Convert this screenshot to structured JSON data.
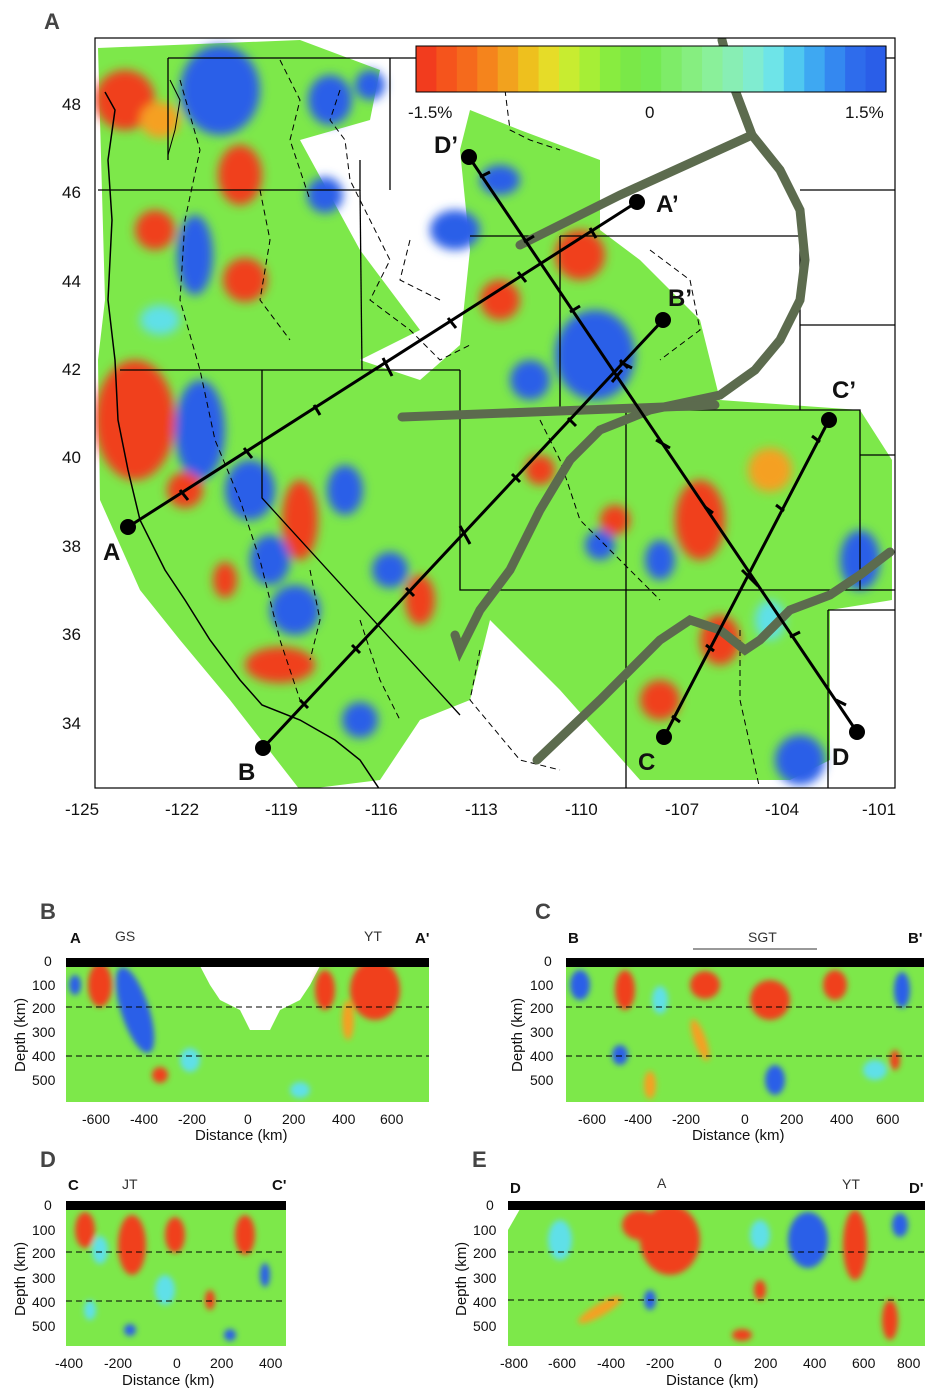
{
  "panels": {
    "A": "A",
    "B": "B",
    "C": "C",
    "D": "D",
    "E": "E"
  },
  "map": {
    "colorbar": {
      "min_label": "-1.5%",
      "mid_label": "0",
      "max_label": "1.5%"
    },
    "lon_ticks": [
      "-125",
      "-122",
      "-119",
      "-116",
      "-113",
      "-110",
      "-107",
      "-104",
      "-101"
    ],
    "lat_ticks": [
      "48",
      "46",
      "44",
      "42",
      "40",
      "38",
      "36",
      "34"
    ],
    "profile_labels": {
      "A": "A",
      "A_end": "A’",
      "B": "B",
      "B_end": "B’",
      "C": "C",
      "C_end": "C’",
      "D": "D",
      "D_end": "D’"
    }
  },
  "sections": {
    "B": {
      "left": "A",
      "right": "A'",
      "annot1": "GS",
      "annot2": "YT",
      "xticks": [
        "-600",
        "-400",
        "-200",
        "0",
        "200",
        "400",
        "600"
      ]
    },
    "C": {
      "left": "B",
      "right": "B'",
      "annot1": "SGT",
      "xticks": [
        "-600",
        "-400",
        "-200",
        "0",
        "200",
        "400",
        "600"
      ]
    },
    "D": {
      "left": "C",
      "right": "C'",
      "annot1": "JT",
      "xticks": [
        "-400",
        "-200",
        "0",
        "200",
        "400"
      ]
    },
    "E": {
      "left": "D",
      "right": "D'",
      "annot1": "A",
      "annot2": "YT",
      "xticks": [
        "-800",
        "-600",
        "-400",
        "-200",
        "0",
        "200",
        "400",
        "600",
        "800"
      ]
    },
    "depth_label": "Depth (km)",
    "distance_label": "Distance (km)",
    "depth_ticks": [
      "0",
      "100",
      "200",
      "300",
      "400",
      "500"
    ]
  },
  "colors": {
    "fast": "#2a5ee8",
    "slow": "#f0401c",
    "neutral": "#7de84a",
    "province": "#5c6b4e"
  }
}
